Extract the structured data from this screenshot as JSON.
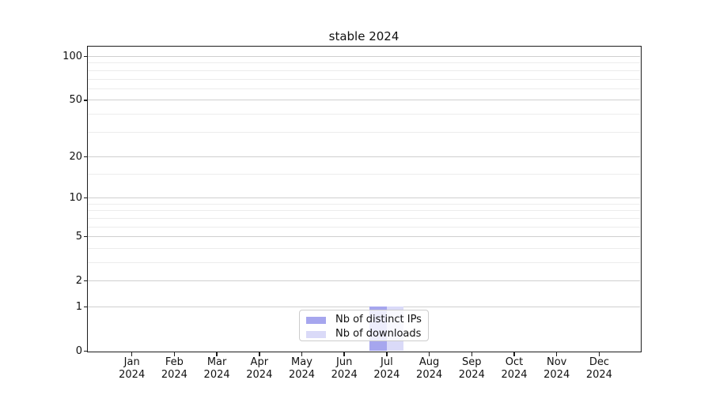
{
  "chart_data": {
    "type": "bar",
    "title": "stable 2024",
    "categories": [
      "Jan 2024",
      "Feb 2024",
      "Mar 2024",
      "Apr 2024",
      "May 2024",
      "Jun 2024",
      "Jul 2024",
      "Aug 2024",
      "Sep 2024",
      "Oct 2024",
      "Nov 2024",
      "Dec 2024"
    ],
    "series": [
      {
        "name": "Nb of distinct IPs",
        "color": "#a6a6ee",
        "values": [
          0,
          0,
          0,
          0,
          0,
          0,
          1,
          0,
          0,
          0,
          0,
          0
        ]
      },
      {
        "name": "Nb of downloads",
        "color": "#dadaf8",
        "values": [
          0,
          0,
          0,
          0,
          0,
          0,
          1,
          0,
          0,
          0,
          0,
          0
        ]
      }
    ],
    "xlabel": "",
    "ylabel": "",
    "y_axis": {
      "scale": "log1p",
      "lim": [
        0,
        117
      ],
      "major_ticks": [
        0,
        1,
        2,
        5,
        10,
        20,
        50,
        100
      ],
      "minor_gridlines": [
        3,
        4,
        6,
        7,
        8,
        9,
        15,
        30,
        40,
        60,
        70,
        80,
        90
      ]
    },
    "grid": "horizontal",
    "legend": {
      "position": "lower center"
    }
  },
  "colors": {
    "background": "#ffffff",
    "spine": "#1c1c1c",
    "tick_text": "#111111",
    "major_grid": "#cfcfcf",
    "minor_grid": "#ececec",
    "legend_border": "#cccccc",
    "distinct_ips_bar": "#a6a6ee",
    "downloads_bar": "#dadaf8"
  }
}
